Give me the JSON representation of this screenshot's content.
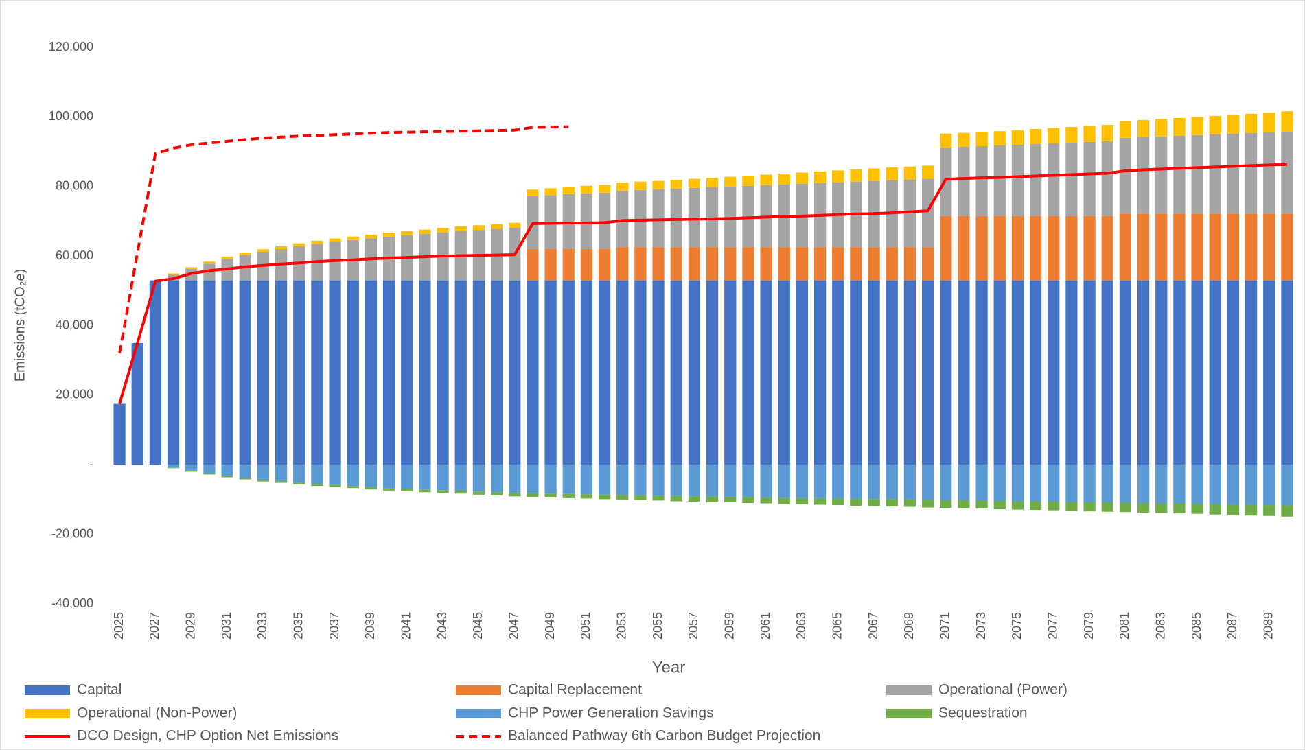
{
  "chart_data": {
    "type": "bar",
    "stacked": true,
    "grid": false,
    "legend": "bottom",
    "x_label": "Year",
    "y_label": "Emissions (tCO₂e)",
    "categories": [
      "2025",
      null,
      "2027",
      null,
      "2029",
      null,
      "2031",
      null,
      "2033",
      null,
      "2035",
      null,
      "2037",
      null,
      "2039",
      null,
      "2041",
      null,
      "2043",
      null,
      "2045",
      null,
      "2047",
      null,
      "2049",
      null,
      "2051",
      null,
      "2053",
      null,
      "2055",
      null,
      "2057",
      null,
      "2059",
      null,
      "2061",
      null,
      "2063",
      null,
      "2065",
      null,
      "2067",
      null,
      "2069",
      null,
      "2071",
      null,
      "2073",
      null,
      "2075",
      null,
      "2077",
      null,
      "2079",
      null,
      "2081",
      null,
      "2083",
      null,
      "2085",
      null,
      "2087",
      null,
      "2089",
      null
    ],
    "ylim": [
      -40000,
      120000
    ],
    "yticks": [
      {
        "value": -40000,
        "label": "-40,000"
      },
      {
        "value": -20000,
        "label": "-20,000"
      },
      {
        "value": 0,
        "label": "-"
      },
      {
        "value": 20000,
        "label": "20,000"
      },
      {
        "value": 40000,
        "label": "40,000"
      },
      {
        "value": 60000,
        "label": "60,000"
      },
      {
        "value": 80000,
        "label": "80,000"
      },
      {
        "value": 100000,
        "label": "100,000"
      },
      {
        "value": 120000,
        "label": "120,000"
      }
    ],
    "series": [
      {
        "name": "Capital",
        "type": "bar",
        "color": "#4472c4",
        "values": [
          17500,
          35000,
          53000,
          53000,
          53000,
          53000,
          53000,
          53000,
          53000,
          53000,
          53000,
          53000,
          53000,
          53000,
          53000,
          53000,
          53000,
          53000,
          53000,
          53000,
          53000,
          53000,
          53000,
          53000,
          53000,
          53000,
          53000,
          53000,
          53000,
          53000,
          53000,
          53000,
          53000,
          53000,
          53000,
          53000,
          53000,
          53000,
          53000,
          53000,
          53000,
          53000,
          53000,
          53000,
          53000,
          53000,
          53000,
          53000,
          53000,
          53000,
          53000,
          53000,
          53000,
          53000,
          53000,
          53000,
          53000,
          53000,
          53000,
          53000,
          53000,
          53000,
          53000,
          53000,
          53000,
          53000
        ]
      },
      {
        "name": "Capital Replacement",
        "type": "bar",
        "color": "#ed7d31",
        "values": [
          0,
          0,
          0,
          0,
          0,
          0,
          0,
          0,
          0,
          0,
          0,
          0,
          0,
          0,
          0,
          0,
          0,
          0,
          0,
          0,
          0,
          0,
          0,
          9000,
          9000,
          9000,
          9000,
          9000,
          9500,
          9500,
          9500,
          9500,
          9500,
          9500,
          9500,
          9500,
          9500,
          9500,
          9500,
          9500,
          9500,
          9500,
          9500,
          9500,
          9500,
          9500,
          18500,
          18500,
          18500,
          18500,
          18500,
          18500,
          18500,
          18500,
          18500,
          18500,
          19200,
          19200,
          19200,
          19200,
          19200,
          19200,
          19200,
          19200,
          19200,
          19200
        ]
      },
      {
        "name": "Operational (Power)",
        "type": "bar",
        "color": "#a5a5a5",
        "values": [
          0,
          0,
          0,
          1600,
          3300,
          4800,
          6200,
          7300,
          8200,
          9000,
          9800,
          10500,
          11100,
          11600,
          12100,
          12600,
          13000,
          13400,
          13800,
          14200,
          14500,
          14800,
          15100,
          15200,
          15500,
          15800,
          16000,
          16200,
          16300,
          16500,
          16700,
          16900,
          17100,
          17300,
          17500,
          17700,
          17900,
          18100,
          18300,
          18500,
          18700,
          18900,
          19100,
          19300,
          19500,
          19700,
          19700,
          19900,
          20100,
          20300,
          20500,
          20700,
          20900,
          21100,
          21300,
          21500,
          21800,
          22000,
          22200,
          22400,
          22600,
          22800,
          23000,
          23200,
          23400,
          23600
        ]
      },
      {
        "name": "Operational (Non-Power)",
        "type": "bar",
        "color": "#ffc000",
        "values": [
          0,
          0,
          0,
          400,
          500,
          600,
          650,
          700,
          750,
          800,
          850,
          900,
          950,
          1000,
          1050,
          1100,
          1150,
          1200,
          1250,
          1300,
          1350,
          1400,
          1450,
          1900,
          2000,
          2100,
          2200,
          2200,
          2300,
          2400,
          2400,
          2500,
          2600,
          2700,
          2800,
          2900,
          3000,
          3100,
          3200,
          3300,
          3400,
          3500,
          3600,
          3700,
          3700,
          3800,
          4000,
          4000,
          4100,
          4100,
          4200,
          4300,
          4400,
          4500,
          4600,
          4700,
          4800,
          4900,
          5000,
          5100,
          5200,
          5300,
          5400,
          5500,
          5600,
          5800
        ]
      },
      {
        "name": "CHP Power Generation Savings",
        "type": "bar",
        "color": "#5b9bd5",
        "values": [
          0,
          0,
          0,
          -800,
          -1700,
          -2500,
          -3200,
          -3800,
          -4300,
          -4700,
          -5100,
          -5500,
          -5800,
          -6100,
          -6400,
          -6700,
          -6900,
          -7100,
          -7300,
          -7500,
          -7700,
          -7900,
          -8100,
          -8200,
          -8300,
          -8400,
          -8500,
          -8600,
          -8700,
          -8800,
          -8900,
          -9000,
          -9100,
          -9200,
          -9200,
          -9300,
          -9400,
          -9500,
          -9600,
          -9600,
          -9700,
          -9800,
          -9900,
          -9900,
          -10000,
          -10100,
          -10200,
          -10200,
          -10300,
          -10400,
          -10500,
          -10500,
          -10600,
          -10700,
          -10800,
          -10800,
          -10900,
          -11000,
          -11100,
          -11100,
          -11200,
          -11300,
          -11400,
          -11500,
          -11600,
          -11700
        ]
      },
      {
        "name": "Sequestration",
        "type": "bar",
        "color": "#70ad47",
        "values": [
          0,
          0,
          0,
          -200,
          -300,
          -300,
          -400,
          -400,
          -500,
          -500,
          -500,
          -600,
          -600,
          -600,
          -700,
          -700,
          -700,
          -800,
          -800,
          -800,
          -900,
          -900,
          -1000,
          -1100,
          -1100,
          -1200,
          -1200,
          -1300,
          -1300,
          -1400,
          -1400,
          -1500,
          -1500,
          -1600,
          -1600,
          -1700,
          -1700,
          -1800,
          -1800,
          -1900,
          -1900,
          -2000,
          -2000,
          -2100,
          -2100,
          -2200,
          -2200,
          -2300,
          -2300,
          -2400,
          -2400,
          -2500,
          -2500,
          -2600,
          -2600,
          -2700,
          -2700,
          -2800,
          -2800,
          -2900,
          -2900,
          -3000,
          -3000,
          -3100,
          -3100,
          -3200
        ]
      },
      {
        "name": "DCO Design, CHP Option Net Emissions",
        "type": "line",
        "dashed": false,
        "color": "#ff0000",
        "values": [
          17500,
          35000,
          52800,
          53500,
          55000,
          55800,
          56300,
          56900,
          57300,
          57700,
          58000,
          58400,
          58700,
          58900,
          59200,
          59400,
          59600,
          59800,
          60000,
          60100,
          60200,
          60300,
          60400,
          69300,
          69400,
          69500,
          69500,
          69600,
          70200,
          70300,
          70400,
          70500,
          70600,
          70700,
          70800,
          71000,
          71200,
          71400,
          71500,
          71700,
          71900,
          72100,
          72200,
          72400,
          72700,
          73000,
          82100,
          82300,
          82500,
          82600,
          82800,
          83000,
          83200,
          83400,
          83600,
          83800,
          84500,
          84800,
          85000,
          85200,
          85400,
          85600,
          85800,
          86000,
          86200,
          86300
        ]
      },
      {
        "name": "Balanced Pathway 6th Carbon Budget Projection",
        "type": "line",
        "dashed": true,
        "color": "#ff0000",
        "values": [
          32000,
          61000,
          89500,
          91000,
          92000,
          92500,
          93000,
          93500,
          93900,
          94200,
          94500,
          94700,
          94900,
          95100,
          95300,
          95500,
          95600,
          95700,
          95800,
          95900,
          96000,
          96100,
          96200,
          97000,
          97100,
          97200,
          null,
          null,
          null,
          null,
          null,
          null,
          null,
          null,
          null,
          null,
          null,
          null,
          null,
          null,
          null,
          null,
          null,
          null,
          null,
          null,
          null,
          null,
          null,
          null,
          null,
          null,
          null,
          null,
          null,
          null,
          null,
          null,
          null,
          null,
          null,
          null,
          null,
          null,
          null,
          null
        ]
      }
    ]
  }
}
